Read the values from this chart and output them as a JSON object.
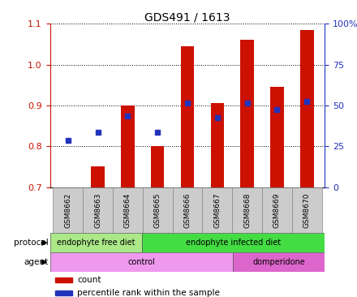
{
  "title": "GDS491 / 1613",
  "samples": [
    "GSM8662",
    "GSM8663",
    "GSM8664",
    "GSM8665",
    "GSM8666",
    "GSM8667",
    "GSM8668",
    "GSM8669",
    "GSM8670"
  ],
  "count_values": [
    0.7,
    0.75,
    0.9,
    0.8,
    1.045,
    0.905,
    1.06,
    0.945,
    1.085
  ],
  "percentile_values": [
    0.815,
    0.835,
    0.875,
    0.835,
    0.905,
    0.87,
    0.905,
    0.89,
    0.91
  ],
  "ylim_left": [
    0.7,
    1.1
  ],
  "ylim_right": [
    0,
    100
  ],
  "yticks_left": [
    0.7,
    0.8,
    0.9,
    1.0,
    1.1
  ],
  "yticks_right": [
    0,
    25,
    50,
    75,
    100
  ],
  "bar_color": "#cc1100",
  "dot_color": "#2233bb",
  "bar_width": 0.45,
  "protocol_groups": [
    {
      "label": "endophyte free diet",
      "start": 0,
      "end": 3,
      "color": "#aae888"
    },
    {
      "label": "endophyte infected diet",
      "start": 3,
      "end": 9,
      "color": "#44dd44"
    }
  ],
  "agent_groups": [
    {
      "label": "control",
      "start": 0,
      "end": 6,
      "color": "#ee99ee"
    },
    {
      "label": "domperidone",
      "start": 6,
      "end": 9,
      "color": "#dd66cc"
    }
  ],
  "sample_box_color": "#cccccc",
  "legend_bar_color": "#cc1100",
  "legend_dot_color": "#2233bb",
  "legend_count_label": "count",
  "legend_percentile_label": "percentile rank within the sample",
  "background_color": "#ffffff"
}
